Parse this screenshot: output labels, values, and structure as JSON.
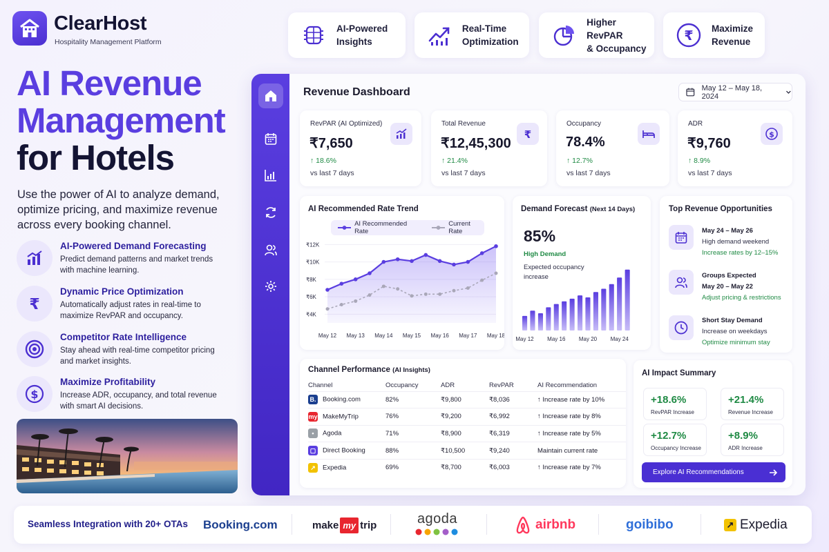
{
  "brand": {
    "name": "ClearHost",
    "tagline": "Hospitality Management Platform"
  },
  "features_top": [
    {
      "icon": "chip-icon",
      "label_1": "AI-Powered",
      "label_2": "Insights"
    },
    {
      "icon": "trend-up-icon",
      "label_1": "Real-Time",
      "label_2": "Optimization"
    },
    {
      "icon": "pie-chart-icon",
      "label_1": "Higher RevPAR",
      "label_2": "& Occupancy"
    },
    {
      "icon": "rupee-circle-icon",
      "label_1": "Maximize",
      "label_2": "Revenue"
    }
  ],
  "hero": {
    "line1": "AI Revenue",
    "line2": "Management",
    "line3": "for Hotels",
    "description": "Use the power of AI to analyze demand, optimize pricing, and maximize revenue across every booking channel."
  },
  "benefits": [
    {
      "icon": "bar-chart-icon",
      "title": "AI-Powered Demand Forecasting",
      "desc": "Predict demand patterns and market trends with machine learning."
    },
    {
      "icon": "rupee-icon",
      "title": "Dynamic Price Optimization",
      "desc": "Automatically adjust rates in real-time to maximize RevPAR and occupancy."
    },
    {
      "icon": "target-icon",
      "title": "Competitor Rate Intelligence",
      "desc": "Stay ahead with real-time competitor pricing and market insights."
    },
    {
      "icon": "dollar-circle-icon",
      "title": "Maximize Profitability",
      "desc": "Increase ADR, occupancy, and total revenue with smart AI decisions."
    }
  ],
  "dashboard": {
    "title": "Revenue Dashboard",
    "date_range": "May 12 – May 18, 2024",
    "kpis": [
      {
        "label": "RevPAR (AI Optimized)",
        "value": "₹7,650",
        "change": "↑  18.6%",
        "vs": "vs last 7 days",
        "icon": "chart-up-icon"
      },
      {
        "label": "Total Revenue",
        "value": "₹12,45,300",
        "change": "↑  21.4%",
        "vs": "vs last 7 days",
        "icon": "rupee-icon"
      },
      {
        "label": "Occupancy",
        "value": "78.4%",
        "change": "↑  12.7%",
        "vs": "vs last 7 days",
        "icon": "bed-icon"
      },
      {
        "label": "ADR",
        "value": "₹9,760",
        "change": "↑  8.9%",
        "vs": "vs last 7 days",
        "icon": "dollar-icon"
      }
    ],
    "trend": {
      "title": "AI Recommended Rate Trend",
      "legend_ai": "AI Recommended Rate",
      "legend_current": "Current Rate"
    },
    "demand": {
      "title": "Demand Forecast",
      "subtitle": "(Next 14 Days)",
      "value": "85%",
      "status": "High Demand",
      "desc_1": "Expected occupancy",
      "desc_2": "increase"
    },
    "opportunities": {
      "title": "Top Revenue Opportunities",
      "items": [
        {
          "icon": "calendar-icon",
          "line1": "May 24 – May 26",
          "line2": "High demand weekend",
          "line3": "Increase rates by 12–15%"
        },
        {
          "icon": "users-icon",
          "line1": "Groups Expected",
          "line2": "May 20 – May 22",
          "line3": "Adjust pricing & restrictions"
        },
        {
          "icon": "clock-icon",
          "line1": "Short Stay Demand",
          "line2": "Increase on weekdays",
          "line3": "Optimize minimum stay"
        }
      ]
    },
    "channels": {
      "title": "Channel Performance",
      "subtitle": "(AI Insights)",
      "headers": [
        "Channel",
        "Occupancy",
        "ADR",
        "RevPAR",
        "AI Recommendation"
      ],
      "rows": [
        {
          "logo": "B.",
          "color": "#1b3f8f",
          "name": "Booking.com",
          "occ": "82%",
          "adr": "₹9,800",
          "revpar": "₹8,036",
          "rec": "↑  Increase rate by 10%",
          "type": "up"
        },
        {
          "logo": "my",
          "color": "#e8262f",
          "name": "MakeMyTrip",
          "occ": "76%",
          "adr": "₹9,200",
          "revpar": "₹6,992",
          "rec": "↑  Increase rate by 8%",
          "type": "up"
        },
        {
          "logo": "•",
          "color": "#9aa0a6",
          "name": "Agoda",
          "occ": "71%",
          "adr": "₹8,900",
          "revpar": "₹6,319",
          "rec": "↑  Increase rate by 5%",
          "type": "up"
        },
        {
          "logo": "▢",
          "color": "#5a3ee0",
          "name": "Direct Booking",
          "occ": "88%",
          "adr": "₹10,500",
          "revpar": "₹9,240",
          "rec": "Maintain current rate",
          "type": "keep"
        },
        {
          "logo": "↗",
          "color": "#f2c200",
          "name": "Expedia",
          "occ": "69%",
          "adr": "₹8,700",
          "revpar": "₹6,003",
          "rec": "↑  Increase rate by 7%",
          "type": "up"
        }
      ]
    },
    "impact": {
      "title": "AI Impact Summary",
      "items": [
        {
          "value": "+18.6%",
          "label": "RevPAR Increase"
        },
        {
          "value": "+21.4%",
          "label": "Revenue Increase"
        },
        {
          "value": "+12.7%",
          "label": "Occupancy Increase"
        },
        {
          "value": "+8.9%",
          "label": "ADR Increase"
        }
      ],
      "button": "Explore AI Recommendations"
    }
  },
  "integrations": {
    "title": "Seamless Integration with 20+ OTAs",
    "otas": [
      "Booking.com",
      "make",
      "my",
      "trip",
      "agoda",
      "airbnb",
      "goibibo",
      "Expedia"
    ]
  },
  "chart_data": [
    {
      "type": "line",
      "title": "AI Recommended Rate Trend",
      "x": [
        "May 12",
        "May 13",
        "May 14",
        "May 15",
        "May 16",
        "May 17",
        "May 18"
      ],
      "y_ticks": [
        "₹4K",
        "₹6K",
        "₹8K",
        "₹10K",
        "₹12K"
      ],
      "ylim": [
        3000,
        12500
      ],
      "series": [
        {
          "name": "AI Recommended Rate",
          "color": "#5a3ee0",
          "x": [
            0,
            0.5,
            1,
            1.5,
            2,
            2.5,
            3,
            3.5,
            4,
            4.5,
            5,
            5.5,
            6
          ],
          "values": [
            6800,
            7500,
            8000,
            8700,
            10000,
            10300,
            10100,
            10800,
            10100,
            9700,
            10000,
            11000,
            11800
          ]
        },
        {
          "name": "Current Rate",
          "color": "#a9a7b8",
          "x": [
            0,
            0.5,
            1,
            1.5,
            2,
            2.5,
            3,
            3.5,
            4,
            4.5,
            5,
            5.5,
            6
          ],
          "values": [
            4600,
            5100,
            5500,
            6200,
            7200,
            6900,
            6100,
            6300,
            6300,
            6700,
            7000,
            7900,
            8700
          ]
        }
      ]
    },
    {
      "type": "bar",
      "title": "Demand Forecast",
      "categories": [
        "May 12",
        "May 13",
        "May 14",
        "May 15",
        "May 16",
        "May 17",
        "May 18",
        "May 19",
        "May 20",
        "May 21",
        "May 22",
        "May 23",
        "May 24",
        "May 25"
      ],
      "x_tick_labels": [
        "May 12",
        "May 16",
        "May 20",
        "May 24"
      ],
      "values": [
        22,
        30,
        26,
        35,
        40,
        44,
        48,
        53,
        50,
        58,
        63,
        70,
        80,
        92
      ]
    }
  ]
}
